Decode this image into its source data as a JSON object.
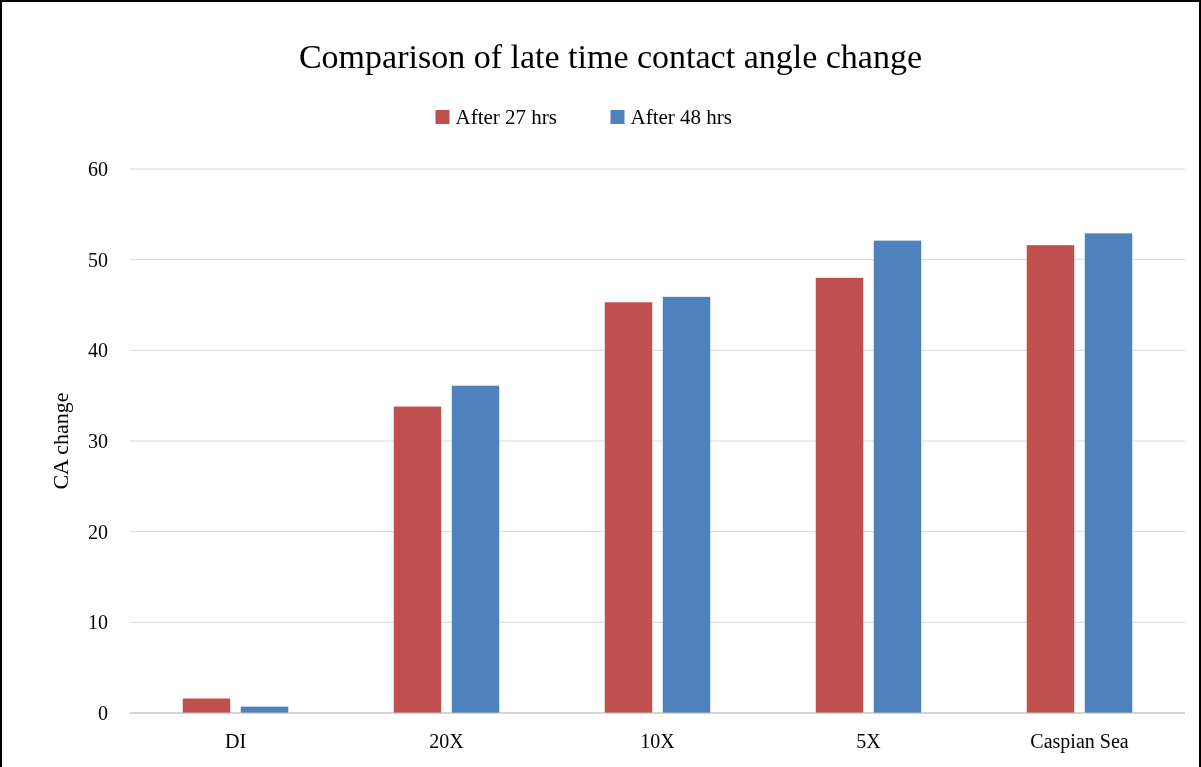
{
  "chart_data": {
    "type": "bar",
    "title": "Comparison of late time contact angle change",
    "ylabel": "CA change",
    "categories": [
      "DI",
      "20X",
      "10X",
      "5X",
      "Caspian Sea"
    ],
    "series": [
      {
        "name": "After 27 hrs",
        "color": "#c0504d",
        "values": [
          1.6,
          33.8,
          45.3,
          48.0,
          51.6
        ]
      },
      {
        "name": "After 48 hrs",
        "color": "#4f81bd",
        "values": [
          0.7,
          36.1,
          45.9,
          52.1,
          52.9
        ]
      }
    ],
    "ylim": [
      0,
      60
    ],
    "yticks": [
      0,
      10,
      20,
      30,
      40,
      50,
      60
    ],
    "grid": "y",
    "legend": "top"
  }
}
